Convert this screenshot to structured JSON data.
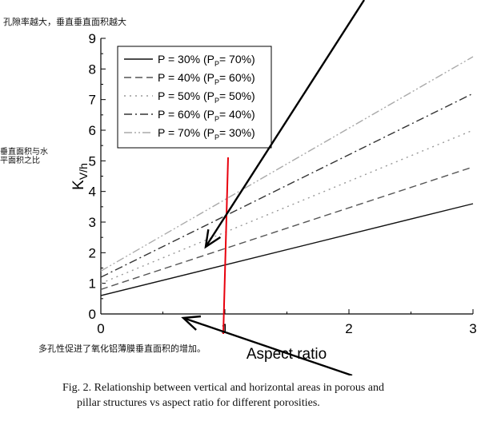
{
  "annotations": {
    "top_note": "孔隙率越大，垂直垂直面积越大",
    "left_note_line1": "垂直面积与水",
    "left_note_line2": "平面积之比",
    "bottom_note": "多孔性促进了氧化铝薄膜垂直面积的增加。"
  },
  "caption": {
    "line1": "Fig. 2.   Relationship between vertical and horizontal areas in porous and",
    "line2": "pillar structures vs aspect ratio for different porosities."
  },
  "colors": {
    "marker_line": "#e8000d",
    "arrow": "#000000"
  },
  "chart_data": {
    "type": "line",
    "title": "",
    "xlabel": "Aspect ratio",
    "ylabel_main": "K",
    "ylabel_sub": "V/h",
    "xlim": [
      0,
      3
    ],
    "ylim": [
      0,
      9
    ],
    "x_ticks": [
      "0",
      "1",
      "2",
      "3"
    ],
    "y_ticks": [
      "0",
      "1",
      "2",
      "3",
      "4",
      "5",
      "6",
      "7",
      "8",
      "9"
    ],
    "grid": false,
    "legend_position": "top-left",
    "series": [
      {
        "label_main": "P = 30% (P",
        "label_sub": "P",
        "label_tail": "= 70%)",
        "dash": "solid",
        "color": "#111111",
        "x": [
          0,
          3
        ],
        "y": [
          0.6,
          3.6
        ]
      },
      {
        "label_main": "P = 40% (P",
        "label_sub": "P",
        "label_tail": "= 60%)",
        "dash": "dash",
        "color": "#555555",
        "x": [
          0,
          3
        ],
        "y": [
          0.8,
          4.8
        ]
      },
      {
        "label_main": "P = 50% (P",
        "label_sub": "P",
        "label_tail": "= 50%)",
        "dash": "dot",
        "color": "#999999",
        "x": [
          0,
          3
        ],
        "y": [
          1.0,
          6.0
        ]
      },
      {
        "label_main": "P = 60% (P",
        "label_sub": "P",
        "label_tail": "= 40%)",
        "dash": "dashdot",
        "color": "#333333",
        "x": [
          0,
          3
        ],
        "y": [
          1.2,
          7.2
        ]
      },
      {
        "label_main": "P = 70% (P",
        "label_sub": "P",
        "label_tail": "= 30%)",
        "dash": "dashdotdot",
        "color": "#aaaaaa",
        "x": [
          0,
          3
        ],
        "y": [
          1.4,
          8.4
        ]
      }
    ],
    "marker_line_x": 1
  }
}
